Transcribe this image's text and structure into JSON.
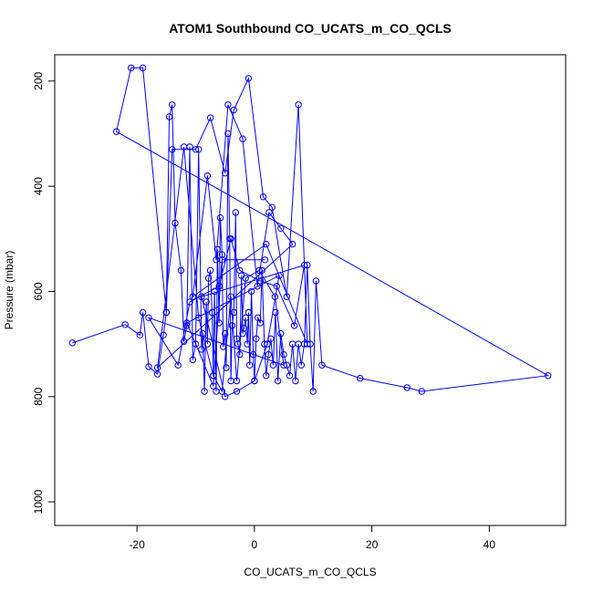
{
  "chart_data": {
    "type": "line",
    "title": "ATOM1 Southbound CO_UCATS_m_CO_QCLS",
    "xlabel": "CO_UCATS_m_CO_QCLS",
    "ylabel": "Pressure (mbar)",
    "xlim": [
      -34,
      53
    ],
    "ylim": [
      1045,
      150
    ],
    "y_reversed": true,
    "x_ticks": [
      -20,
      0,
      20,
      40
    ],
    "y_ticks": [
      200,
      400,
      600,
      800,
      1000
    ],
    "x_tick_labels": [
      "-20",
      "0",
      "20",
      "40"
    ],
    "y_tick_labels": [
      "200",
      "400",
      "600",
      "800",
      "1000"
    ],
    "grid": false,
    "legend": "none",
    "series_color": "#0000ff",
    "x": [
      -31.0,
      -22.0,
      -19.5,
      -19.0,
      -18.0,
      -16.5,
      -15.5,
      -15.0,
      -14.5,
      -14.0,
      -13.5,
      -12.5,
      -12.0,
      -11.5,
      -11.0,
      -10.5,
      -10.0,
      -9.5,
      -9.0,
      -8.8,
      -8.5,
      -8.2,
      -8.0,
      -7.8,
      -7.5,
      -7.2,
      -7.0,
      -6.8,
      -6.5,
      -6.3,
      -6.0,
      -5.8,
      -5.5,
      -5.3,
      -5.0,
      -4.8,
      -4.5,
      -4.2,
      -4.0,
      -3.8,
      -3.5,
      -3.2,
      -3.0,
      -2.8,
      -2.5,
      -2.2,
      -2.0,
      -1.8,
      -1.5,
      -1.2,
      -1.0,
      -0.8,
      -0.5,
      -0.2,
      0.0,
      0.3,
      0.6,
      1.0,
      1.3,
      1.7,
      2.0,
      2.4,
      2.8,
      3.2,
      3.6,
      4.0,
      4.5,
      5.0,
      5.5,
      6.0,
      6.5,
      7.0,
      7.5,
      8.0,
      8.5,
      9.0,
      9.5,
      10.0,
      10.5,
      11.5,
      18.0,
      26.0,
      28.5,
      50.0,
      -23.5,
      -21.0,
      -19.0,
      -15.0,
      -14.0,
      -10.0,
      -7.5,
      -5.0,
      -3.5,
      -1.0,
      1.5,
      3.0,
      5.5,
      7.5,
      9.0,
      2.0,
      -10.5,
      -8.0,
      -6.5,
      -4.5,
      -2.0,
      0.5,
      2.5,
      4.5,
      6.5,
      -16.5,
      -12.0,
      -9.5,
      -7.0,
      -5.5,
      -4.0,
      -3.0,
      -1.5,
      0.8,
      3.5,
      5.0,
      -18.0,
      -13.0,
      -11.0,
      -6.0,
      -4.0,
      -2.5,
      1.0,
      3.8,
      6.8,
      8.5,
      -9.0,
      -5.0,
      -3.0,
      0.0,
      2.2,
      4.2,
      -11.5,
      -7.0,
      -5.5,
      1.8
    ],
    "y": [
      698,
      663,
      683,
      640,
      743,
      757,
      683,
      640,
      268,
      245,
      470,
      560,
      695,
      665,
      325,
      730,
      700,
      330,
      710,
      680,
      790,
      620,
      700,
      575,
      560,
      640,
      760,
      600,
      790,
      520,
      660,
      460,
      530,
      705,
      680,
      745,
      300,
      500,
      770,
      665,
      640,
      450,
      690,
      700,
      720,
      570,
      680,
      670,
      650,
      700,
      640,
      740,
      600,
      720,
      770,
      690,
      650,
      660,
      560,
      700,
      760,
      720,
      690,
      740,
      640,
      770,
      680,
      720,
      740,
      760,
      700,
      770,
      700,
      740,
      700,
      550,
      700,
      790,
      580,
      740,
      765,
      783,
      790,
      760,
      296,
      175,
      175,
      640,
      330,
      330,
      270,
      375,
      255,
      195,
      420,
      440,
      610,
      245,
      700,
      510,
      610,
      380,
      540,
      245,
      310,
      590,
      450,
      480,
      510,
      745,
      325,
      650,
      760,
      790,
      610,
      770,
      575,
      560,
      610,
      740,
      650,
      740,
      620,
      590,
      500,
      560,
      580,
      590,
      665,
      550,
      610,
      800,
      790,
      770,
      700,
      570,
      660,
      780,
      540,
      540
    ]
  }
}
